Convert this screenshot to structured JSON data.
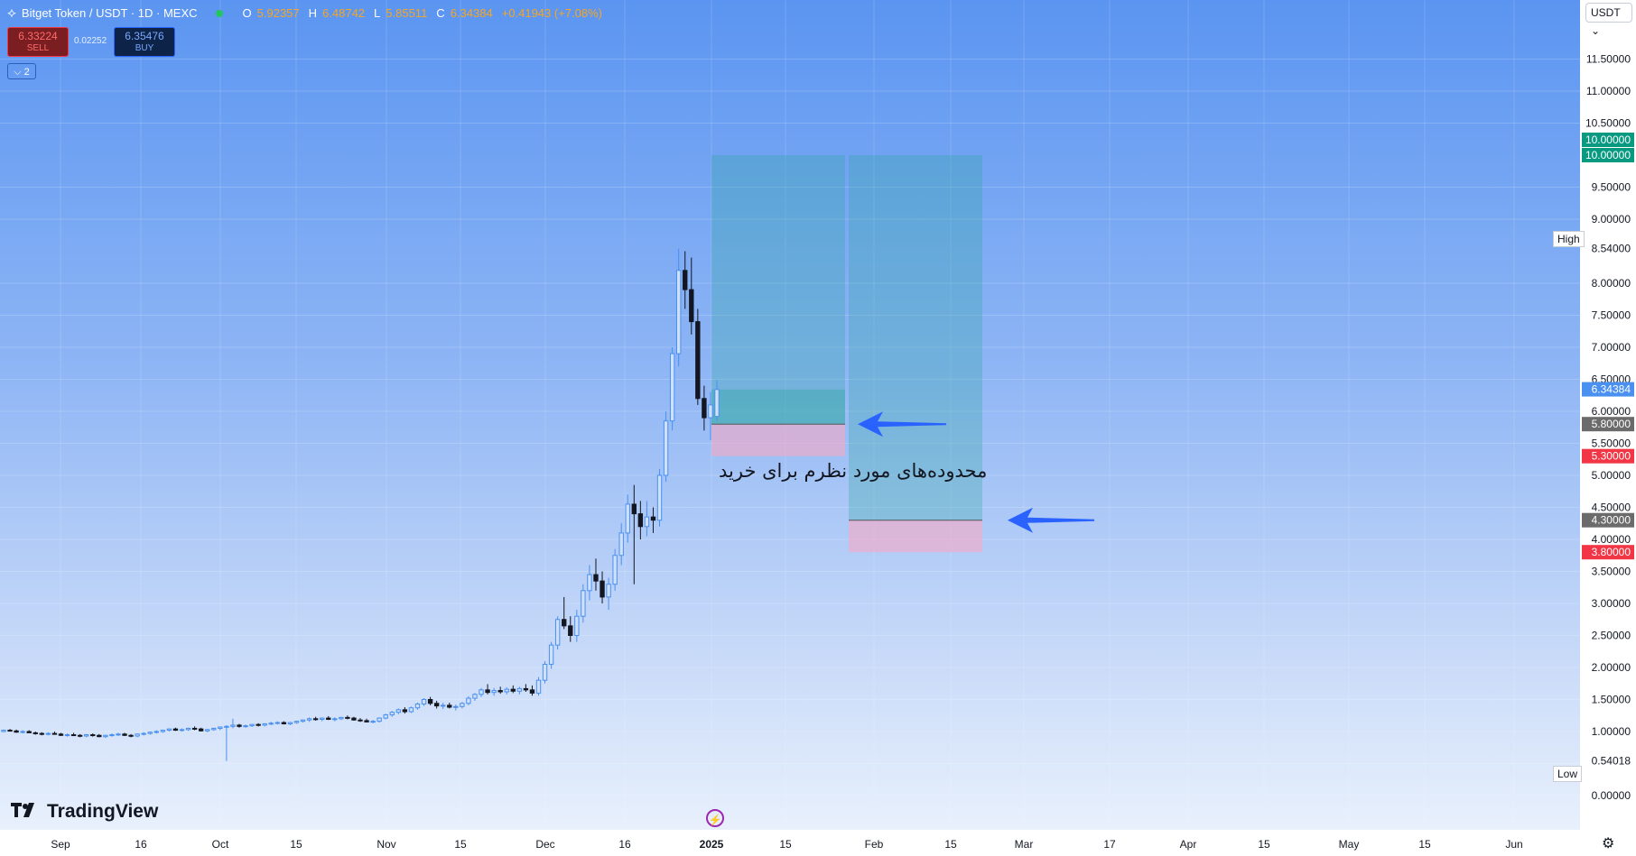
{
  "legend": {
    "symbol": "Bitget Token / USDT · 1D · MEXC",
    "o_key": "O",
    "open": "5.92357",
    "h_key": "H",
    "high": "6.48742",
    "l_key": "L",
    "low": "5.85511",
    "c_key": "C",
    "close": "6.34384",
    "change": "+0.41943 (+7.08%)"
  },
  "trade": {
    "sell_price": "6.33224",
    "sell_label": "SELL",
    "spread": "0.02252",
    "buy_price": "6.35476",
    "buy_label": "BUY",
    "collapse_label": "⌵ 2"
  },
  "currency": "USDT ⌄",
  "logo": "TradingView",
  "annotation": "محدوده‌های مورد نظرم برای خرید",
  "high_tag": "High",
  "low_tag": "Low",
  "colors": {
    "up": "#4a90f0",
    "down": "#131722",
    "target": "#26a69a",
    "stop": "#f23645",
    "entry": "#6b6b6b",
    "last": "#2962ff",
    "arrow": "#2962ff"
  },
  "chart_data": {
    "type": "candlestick",
    "price_ticks": [
      "11.50000",
      "11.00000",
      "10.50000",
      "9.50000",
      "9.00000",
      "8.00000",
      "7.50000",
      "7.00000",
      "6.50000",
      "6.00000",
      "5.50000",
      "5.00000",
      "4.50000",
      "4.00000",
      "3.50000",
      "3.00000",
      "2.50000",
      "2.00000",
      "1.50000",
      "1.00000",
      "0.50000",
      "0.00000"
    ],
    "ylim": [
      0,
      12
    ],
    "time_ticks": [
      "Sep",
      "16",
      "Oct",
      "15",
      "Nov",
      "15",
      "Dec",
      "16",
      "2025",
      "15",
      "Feb",
      "15",
      "Mar",
      "17",
      "Apr",
      "15",
      "May",
      "15",
      "Jun"
    ],
    "last_price": "6.34384",
    "high": "8.54000",
    "low": "0.54018",
    "price_labels": [
      {
        "value": 10.0,
        "text": "10.00000",
        "kind": "target"
      },
      {
        "value": 10.0,
        "text": "10.00000",
        "kind": "target"
      },
      {
        "value": 5.8,
        "text": "5.80000",
        "kind": "entry"
      },
      {
        "value": 5.3,
        "text": "5.30000",
        "kind": "stop"
      },
      {
        "value": 4.3,
        "text": "4.30000",
        "kind": "entry"
      },
      {
        "value": 3.8,
        "text": "3.80000",
        "kind": "stop"
      }
    ],
    "positions": [
      {
        "entry": 5.8,
        "target": 10.0,
        "stop": 5.3,
        "current": 6.34
      },
      {
        "entry": 4.3,
        "target": 10.0,
        "stop": 3.8
      }
    ],
    "candles": [
      [
        1.0,
        1.03,
        0.99,
        1.02
      ],
      [
        1.02,
        1.04,
        1.0,
        1.01
      ],
      [
        1.01,
        1.03,
        0.98,
        0.99
      ],
      [
        0.99,
        1.02,
        0.97,
        1.0
      ],
      [
        1.0,
        1.02,
        0.98,
        0.98
      ],
      [
        0.98,
        1.0,
        0.95,
        0.97
      ],
      [
        0.97,
        0.99,
        0.94,
        0.96
      ],
      [
        0.96,
        0.99,
        0.94,
        0.97
      ],
      [
        0.97,
        1.0,
        0.95,
        0.96
      ],
      [
        0.96,
        0.98,
        0.93,
        0.94
      ],
      [
        0.94,
        0.97,
        0.92,
        0.95
      ],
      [
        0.95,
        0.98,
        0.93,
        0.94
      ],
      [
        0.94,
        0.96,
        0.91,
        0.93
      ],
      [
        0.93,
        0.96,
        0.91,
        0.95
      ],
      [
        0.95,
        0.97,
        0.92,
        0.94
      ],
      [
        0.94,
        0.96,
        0.91,
        0.92
      ],
      [
        0.92,
        0.95,
        0.9,
        0.94
      ],
      [
        0.94,
        0.97,
        0.92,
        0.95
      ],
      [
        0.95,
        0.98,
        0.93,
        0.96
      ],
      [
        0.96,
        0.98,
        0.93,
        0.94
      ],
      [
        0.94,
        0.96,
        0.91,
        0.93
      ],
      [
        0.93,
        0.97,
        0.91,
        0.96
      ],
      [
        0.96,
        0.99,
        0.94,
        0.97
      ],
      [
        0.97,
        1.0,
        0.95,
        0.99
      ],
      [
        0.99,
        1.02,
        0.97,
        1.0
      ],
      [
        1.0,
        1.03,
        0.98,
        1.02
      ],
      [
        1.02,
        1.05,
        1.0,
        1.04
      ],
      [
        1.04,
        1.06,
        1.01,
        1.02
      ],
      [
        1.02,
        1.05,
        1.0,
        1.03
      ],
      [
        1.03,
        1.06,
        1.01,
        1.05
      ],
      [
        1.05,
        1.08,
        1.02,
        1.04
      ],
      [
        1.04,
        1.06,
        1.0,
        1.01
      ],
      [
        1.01,
        1.04,
        0.99,
        1.03
      ],
      [
        1.03,
        1.06,
        1.01,
        1.05
      ],
      [
        1.05,
        1.08,
        1.02,
        1.07
      ],
      [
        1.07,
        1.1,
        0.54,
        1.08
      ],
      [
        1.08,
        1.2,
        1.05,
        1.1
      ],
      [
        1.1,
        1.12,
        1.06,
        1.08
      ],
      [
        1.08,
        1.11,
        1.06,
        1.09
      ],
      [
        1.09,
        1.12,
        1.07,
        1.11
      ],
      [
        1.11,
        1.13,
        1.08,
        1.1
      ],
      [
        1.1,
        1.13,
        1.08,
        1.12
      ],
      [
        1.12,
        1.15,
        1.1,
        1.13
      ],
      [
        1.13,
        1.16,
        1.11,
        1.14
      ],
      [
        1.14,
        1.16,
        1.11,
        1.12
      ],
      [
        1.12,
        1.15,
        1.1,
        1.14
      ],
      [
        1.14,
        1.17,
        1.12,
        1.16
      ],
      [
        1.16,
        1.19,
        1.14,
        1.18
      ],
      [
        1.18,
        1.22,
        1.15,
        1.2
      ],
      [
        1.2,
        1.23,
        1.17,
        1.19
      ],
      [
        1.19,
        1.22,
        1.16,
        1.21
      ],
      [
        1.21,
        1.24,
        1.18,
        1.19
      ],
      [
        1.19,
        1.22,
        1.16,
        1.2
      ],
      [
        1.2,
        1.23,
        1.18,
        1.22
      ],
      [
        1.22,
        1.25,
        1.19,
        1.21
      ],
      [
        1.21,
        1.23,
        1.17,
        1.18
      ],
      [
        1.18,
        1.21,
        1.15,
        1.17
      ],
      [
        1.17,
        1.2,
        1.14,
        1.15
      ],
      [
        1.15,
        1.18,
        1.13,
        1.16
      ],
      [
        1.16,
        1.22,
        1.14,
        1.21
      ],
      [
        1.21,
        1.28,
        1.19,
        1.26
      ],
      [
        1.26,
        1.32,
        1.23,
        1.3
      ],
      [
        1.3,
        1.36,
        1.27,
        1.34
      ],
      [
        1.34,
        1.38,
        1.28,
        1.31
      ],
      [
        1.31,
        1.39,
        1.29,
        1.37
      ],
      [
        1.37,
        1.45,
        1.34,
        1.43
      ],
      [
        1.43,
        1.52,
        1.4,
        1.5
      ],
      [
        1.5,
        1.54,
        1.41,
        1.44
      ],
      [
        1.44,
        1.48,
        1.36,
        1.4
      ],
      [
        1.4,
        1.45,
        1.35,
        1.41
      ],
      [
        1.41,
        1.45,
        1.36,
        1.38
      ],
      [
        1.38,
        1.42,
        1.33,
        1.39
      ],
      [
        1.39,
        1.46,
        1.36,
        1.44
      ],
      [
        1.44,
        1.55,
        1.41,
        1.52
      ],
      [
        1.52,
        1.6,
        1.48,
        1.58
      ],
      [
        1.58,
        1.68,
        1.54,
        1.65
      ],
      [
        1.65,
        1.74,
        1.58,
        1.61
      ],
      [
        1.61,
        1.68,
        1.56,
        1.64
      ],
      [
        1.64,
        1.7,
        1.59,
        1.62
      ],
      [
        1.62,
        1.69,
        1.58,
        1.66
      ],
      [
        1.66,
        1.72,
        1.6,
        1.63
      ],
      [
        1.63,
        1.7,
        1.58,
        1.67
      ],
      [
        1.67,
        1.74,
        1.62,
        1.65
      ],
      [
        1.65,
        1.72,
        1.56,
        1.6
      ],
      [
        1.6,
        1.85,
        1.56,
        1.8
      ],
      [
        1.8,
        2.1,
        1.75,
        2.05
      ],
      [
        2.05,
        2.4,
        1.98,
        2.35
      ],
      [
        2.35,
        2.8,
        2.28,
        2.75
      ],
      [
        2.75,
        3.1,
        2.6,
        2.65
      ],
      [
        2.65,
        2.8,
        2.4,
        2.5
      ],
      [
        2.5,
        2.9,
        2.4,
        2.8
      ],
      [
        2.8,
        3.3,
        2.7,
        3.2
      ],
      [
        3.2,
        3.6,
        3.05,
        3.45
      ],
      [
        3.45,
        3.7,
        3.2,
        3.35
      ],
      [
        3.35,
        3.5,
        3.0,
        3.1
      ],
      [
        3.1,
        3.4,
        2.9,
        3.3
      ],
      [
        3.3,
        3.85,
        3.2,
        3.75
      ],
      [
        3.75,
        4.25,
        3.6,
        4.1
      ],
      [
        4.1,
        4.7,
        3.95,
        4.55
      ],
      [
        4.55,
        4.85,
        3.3,
        4.4
      ],
      [
        4.4,
        4.6,
        4.0,
        4.2
      ],
      [
        4.2,
        4.6,
        4.05,
        4.35
      ],
      [
        4.35,
        4.5,
        4.1,
        4.3
      ],
      [
        4.3,
        5.1,
        4.2,
        5.0
      ],
      [
        5.0,
        6.0,
        4.9,
        5.85
      ],
      [
        5.85,
        7.0,
        5.7,
        6.9
      ],
      [
        6.9,
        8.54,
        6.7,
        8.2
      ],
      [
        8.2,
        8.5,
        7.6,
        7.9
      ],
      [
        7.9,
        8.4,
        7.2,
        7.4
      ],
      [
        7.4,
        7.6,
        6.1,
        6.2
      ],
      [
        6.2,
        6.4,
        5.7,
        5.9
      ],
      [
        5.9,
        6.3,
        5.55,
        6.1
      ],
      [
        5.92,
        6.49,
        5.86,
        6.34
      ]
    ]
  }
}
